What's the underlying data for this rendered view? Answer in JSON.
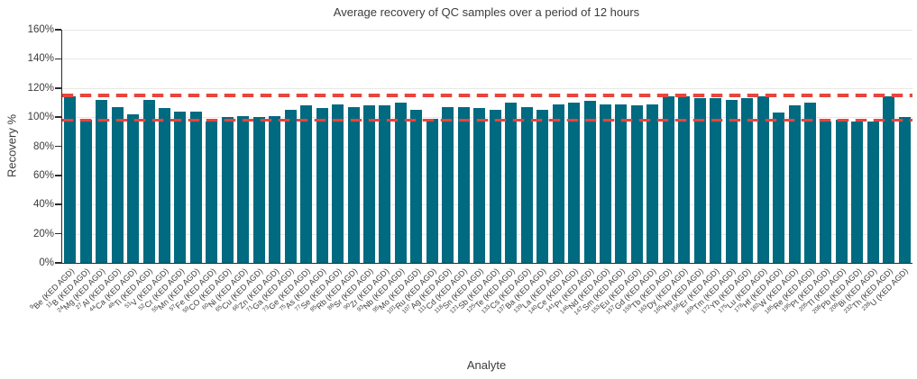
{
  "chart_data": {
    "type": "bar",
    "title": "Average recovery of QC samples over a period of 12 hours",
    "xlabel": "Analyte",
    "ylabel": "Recovery %",
    "ylim": [
      0,
      160
    ],
    "ytick_step": 20,
    "ytick_labels": [
      "0%",
      "20%",
      "40%",
      "60%",
      "80%",
      "100%",
      "120%",
      "140%",
      "160%"
    ],
    "grid": true,
    "legend": "none",
    "bar_color": "#006a80",
    "label_suffix": " (KED AGD)",
    "limit_lines": {
      "upper": 115,
      "lower": 98,
      "color": "#e8453c",
      "style": "dashed"
    },
    "categories": [
      {
        "mass": "9",
        "symbol": "Be"
      },
      {
        "mass": "11",
        "symbol": "B"
      },
      {
        "mass": "24",
        "symbol": "Mg"
      },
      {
        "mass": "27",
        "symbol": "Al"
      },
      {
        "mass": "44",
        "symbol": "Ca"
      },
      {
        "mass": "48",
        "symbol": "Ti"
      },
      {
        "mass": "51",
        "symbol": "V"
      },
      {
        "mass": "52",
        "symbol": "Cr"
      },
      {
        "mass": "55",
        "symbol": "Mn"
      },
      {
        "mass": "57",
        "symbol": "Fe"
      },
      {
        "mass": "59",
        "symbol": "CO"
      },
      {
        "mass": "60",
        "symbol": "Ni"
      },
      {
        "mass": "65",
        "symbol": "Cu"
      },
      {
        "mass": "66",
        "symbol": "Zn"
      },
      {
        "mass": "71",
        "symbol": "Ga"
      },
      {
        "mass": "73",
        "symbol": "Ge"
      },
      {
        "mass": "75",
        "symbol": "As"
      },
      {
        "mass": "77",
        "symbol": "Se"
      },
      {
        "mass": "85",
        "symbol": "Rb"
      },
      {
        "mass": "88",
        "symbol": "Sr"
      },
      {
        "mass": "90",
        "symbol": "Zr"
      },
      {
        "mass": "93",
        "symbol": "Nb"
      },
      {
        "mass": "95",
        "symbol": "Mo"
      },
      {
        "mass": "101",
        "symbol": "Ru"
      },
      {
        "mass": "107",
        "symbol": "Ag"
      },
      {
        "mass": "111",
        "symbol": "Cd"
      },
      {
        "mass": "118",
        "symbol": "Sn"
      },
      {
        "mass": "121",
        "symbol": "Sb"
      },
      {
        "mass": "125",
        "symbol": "Te"
      },
      {
        "mass": "133",
        "symbol": "Cs"
      },
      {
        "mass": "137",
        "symbol": "Ba"
      },
      {
        "mass": "139",
        "symbol": "La"
      },
      {
        "mass": "140",
        "symbol": "Ce"
      },
      {
        "mass": "141",
        "symbol": "Pr"
      },
      {
        "mass": "146",
        "symbol": "Nd"
      },
      {
        "mass": "147",
        "symbol": "Sm"
      },
      {
        "mass": "153",
        "symbol": "Eu"
      },
      {
        "mass": "157",
        "symbol": "Gd"
      },
      {
        "mass": "159",
        "symbol": "Tb"
      },
      {
        "mass": "163",
        "symbol": "Dy"
      },
      {
        "mass": "165",
        "symbol": "Ho"
      },
      {
        "mass": "166",
        "symbol": "Er"
      },
      {
        "mass": "169",
        "symbol": "Tm"
      },
      {
        "mass": "172",
        "symbol": "Yb"
      },
      {
        "mass": "175",
        "symbol": "Lu"
      },
      {
        "mass": "178",
        "symbol": "Hf"
      },
      {
        "mass": "182",
        "symbol": "W"
      },
      {
        "mass": "185",
        "symbol": "Re"
      },
      {
        "mass": "195",
        "symbol": "Pt"
      },
      {
        "mass": "205",
        "symbol": "Tl"
      },
      {
        "mass": "208",
        "symbol": "Pb"
      },
      {
        "mass": "209",
        "symbol": "Bi"
      },
      {
        "mass": "232",
        "symbol": "Th"
      },
      {
        "mass": "238",
        "symbol": "U"
      }
    ],
    "values": [
      114,
      98,
      112,
      107,
      102,
      112,
      106,
      104,
      104,
      97,
      100,
      101,
      100,
      101,
      105,
      108,
      106,
      109,
      107,
      108,
      108,
      110,
      105,
      99,
      107,
      107,
      106,
      105,
      110,
      107,
      105,
      109,
      110,
      111,
      109,
      109,
      108,
      109,
      114,
      114,
      113,
      113,
      112,
      113,
      114,
      103,
      108,
      110,
      97,
      98,
      97,
      97,
      114,
      100
    ]
  }
}
